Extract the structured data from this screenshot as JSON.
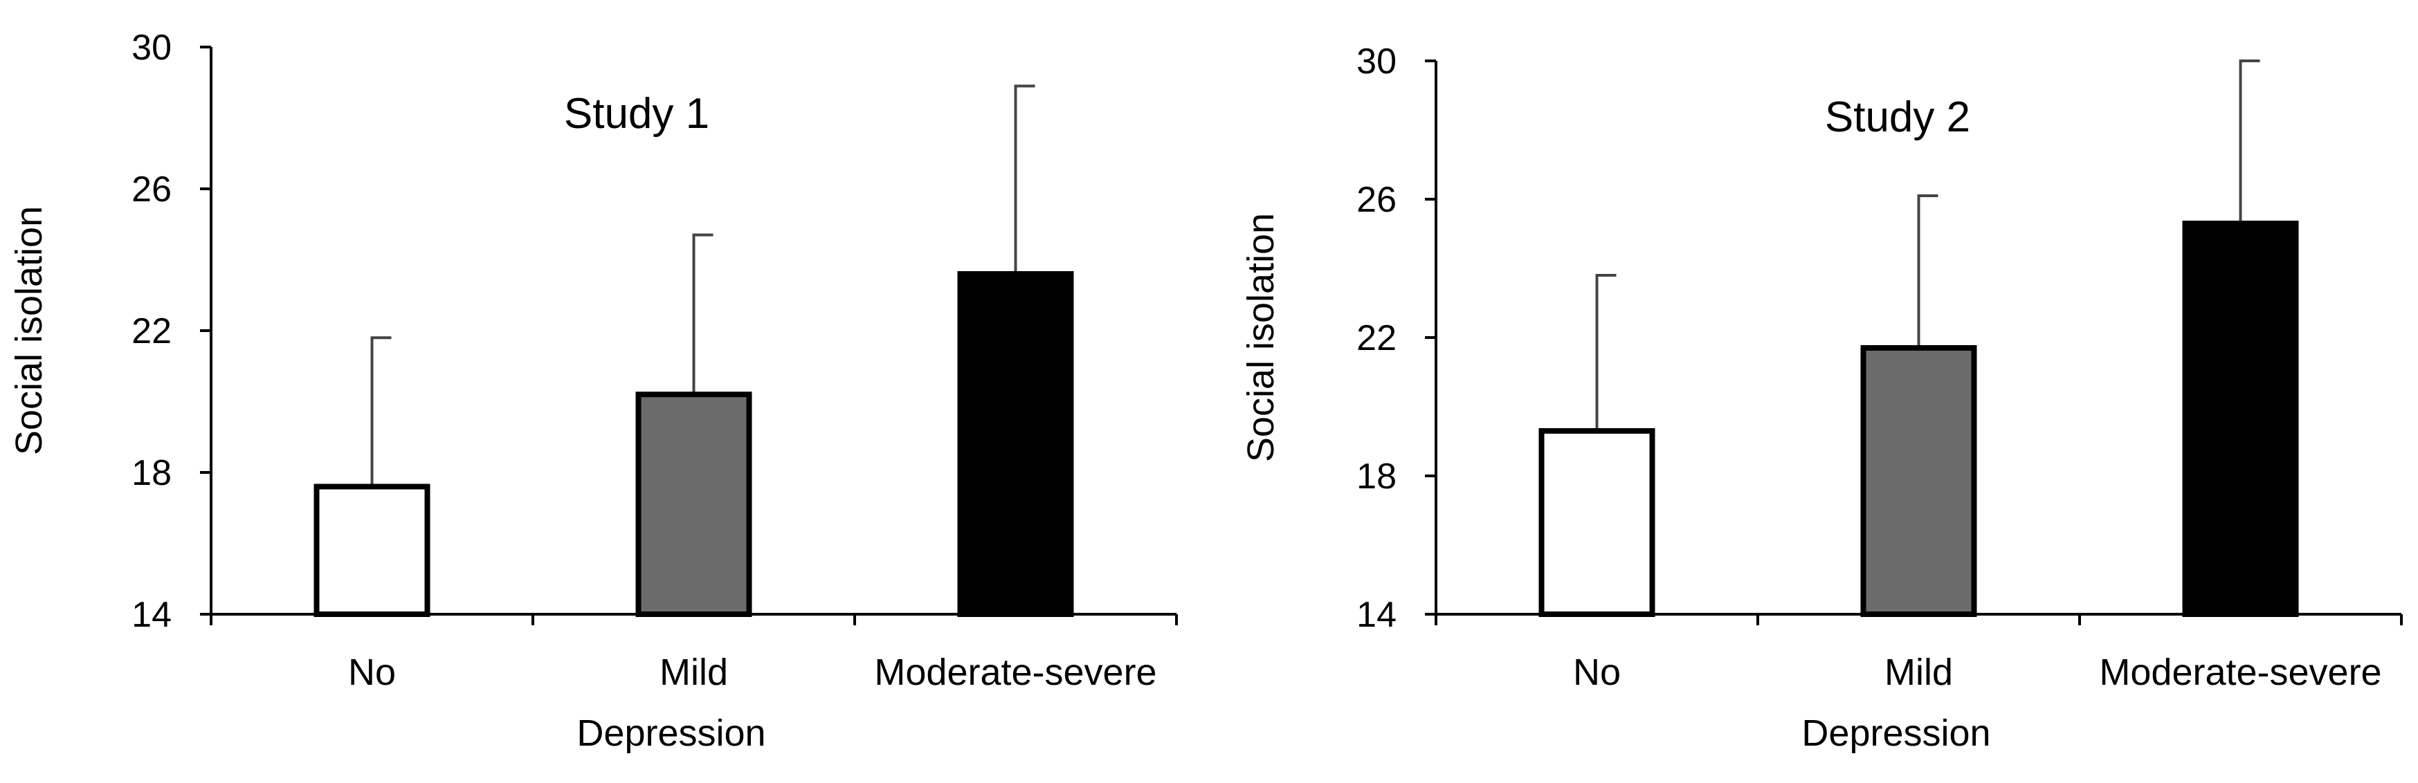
{
  "chart_data": [
    {
      "type": "bar",
      "title": "Study 1",
      "xlabel": "Depression",
      "ylabel": "Social isolation",
      "categories": [
        "No",
        "Mild",
        "Moderate-severe"
      ],
      "values": [
        17.6,
        20.2,
        23.6
      ],
      "error_upper": [
        21.8,
        24.7,
        28.9
      ],
      "ylim": [
        14,
        30
      ],
      "yticks": [
        14,
        18,
        22,
        26,
        30
      ],
      "ytick_labels": [
        "14",
        "18",
        "22",
        "26",
        "30"
      ],
      "bar_colors": [
        "#ffffff",
        "#6b6b6b",
        "#000000"
      ],
      "grid": false
    },
    {
      "type": "bar",
      "title": "Study 2",
      "xlabel": "Depression",
      "ylabel": "Social isolation",
      "categories": [
        "No",
        "Mild",
        "Moderate-severe"
      ],
      "values": [
        19.3,
        21.7,
        25.3
      ],
      "error_upper": [
        23.8,
        26.1,
        30.0
      ],
      "ylim": [
        14,
        30
      ],
      "yticks": [
        14,
        18,
        22,
        26,
        30
      ],
      "ytick_labels": [
        "14",
        "18",
        "22",
        "26",
        "30"
      ],
      "bar_colors": [
        "#ffffff",
        "#6b6b6b",
        "#000000"
      ],
      "grid": false
    }
  ]
}
